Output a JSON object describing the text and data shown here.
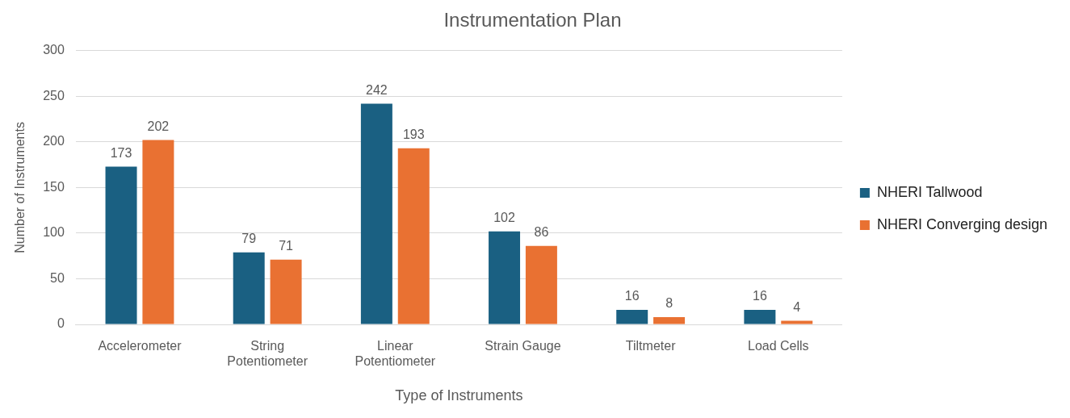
{
  "chart_data": {
    "type": "bar",
    "title": "Instrumentation Plan",
    "xlabel": "Type of Instruments",
    "ylabel": "Number of Instruments",
    "categories": [
      "Accelerometer",
      "String Potentiometer",
      "Linear Potentiometer",
      "Strain Gauge",
      "Tiltmeter",
      "Load Cells"
    ],
    "series": [
      {
        "name": "NHERI Tallwood",
        "color": "#1a6082",
        "values": [
          173,
          79,
          242,
          102,
          16,
          16
        ]
      },
      {
        "name": "NHERI Converging design",
        "color": "#e97132",
        "values": [
          202,
          71,
          193,
          86,
          8,
          4
        ]
      }
    ],
    "ylim": [
      0,
      300
    ],
    "yticks": [
      0,
      50,
      100,
      150,
      200,
      250,
      300
    ],
    "grid": "y",
    "legend": "right",
    "data_labels": true
  }
}
